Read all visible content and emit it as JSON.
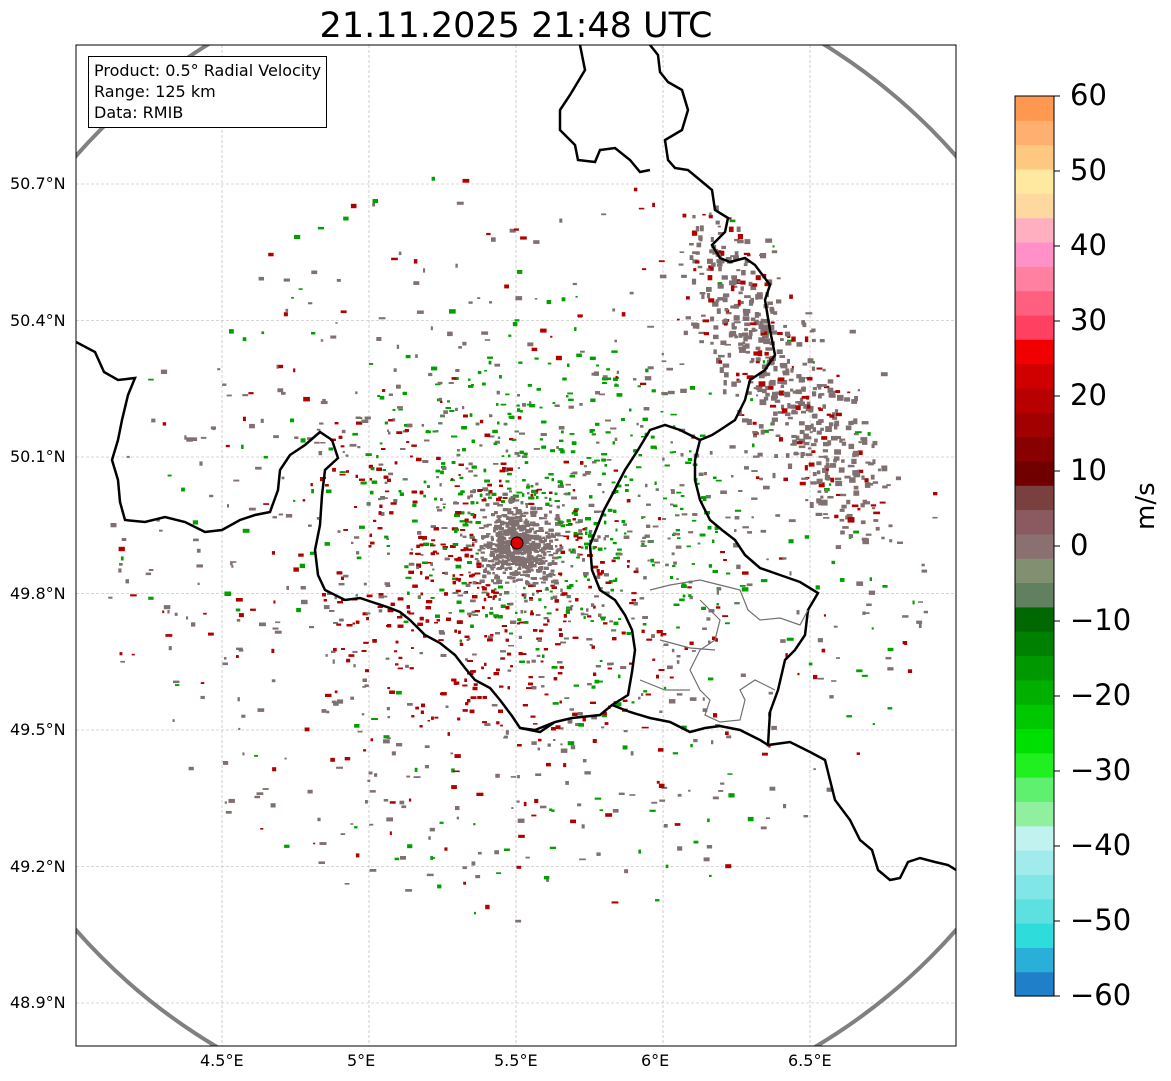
{
  "title": "21.11.2025 21:48 UTC",
  "info_box": {
    "line1": "Product: 0.5° Radial Velocity",
    "line2": "Range: 125 km",
    "line3": "Data: RMIB"
  },
  "map": {
    "lon_range": [
      4.0,
      7.0
    ],
    "lat_range": [
      48.8,
      51.0
    ],
    "lon_ticks": [
      "4.5°E",
      "5°E",
      "5.5°E",
      "6°E",
      "6.5°E"
    ],
    "lat_ticks": [
      "50.7°N",
      "50.4°N",
      "50.1°N",
      "49.8°N",
      "49.5°N",
      "49.2°N",
      "48.9°N"
    ],
    "radar_site": {
      "lon": 5.505,
      "lat": 49.915,
      "color": "#e00000"
    },
    "range_ring_km": 125,
    "range_ring_color": "#808080",
    "grid": true,
    "colors": {
      "inbound": "#00a000",
      "outbound": "#b00000",
      "near_zero": "#807070"
    }
  },
  "colorbar": {
    "label": "m/s",
    "ticks": [
      "60",
      "50",
      "40",
      "30",
      "20",
      "10",
      "0",
      "−10",
      "−20",
      "−30",
      "−40",
      "−50",
      "−60"
    ],
    "range": [
      -60,
      60
    ],
    "stops": [
      "#1f7fc8",
      "#2ab0d8",
      "#2edcdc",
      "#5ce0e0",
      "#80e6e6",
      "#a0ecec",
      "#c0f2f0",
      "#90f0a0",
      "#60f070",
      "#20f020",
      "#00e000",
      "#00c800",
      "#00b000",
      "#009800",
      "#008000",
      "#006800",
      "#608060",
      "#809070",
      "#8a7070",
      "#8a5a60",
      "#7a4040",
      "#700000",
      "#880000",
      "#a00000",
      "#b80000",
      "#d00000",
      "#f00000",
      "#ff4060",
      "#ff6080",
      "#ff80a0",
      "#ff90c8",
      "#ffb0c0",
      "#ffd8a0",
      "#ffe8a0",
      "#ffc880",
      "#ffb070",
      "#ff9850"
    ]
  }
}
